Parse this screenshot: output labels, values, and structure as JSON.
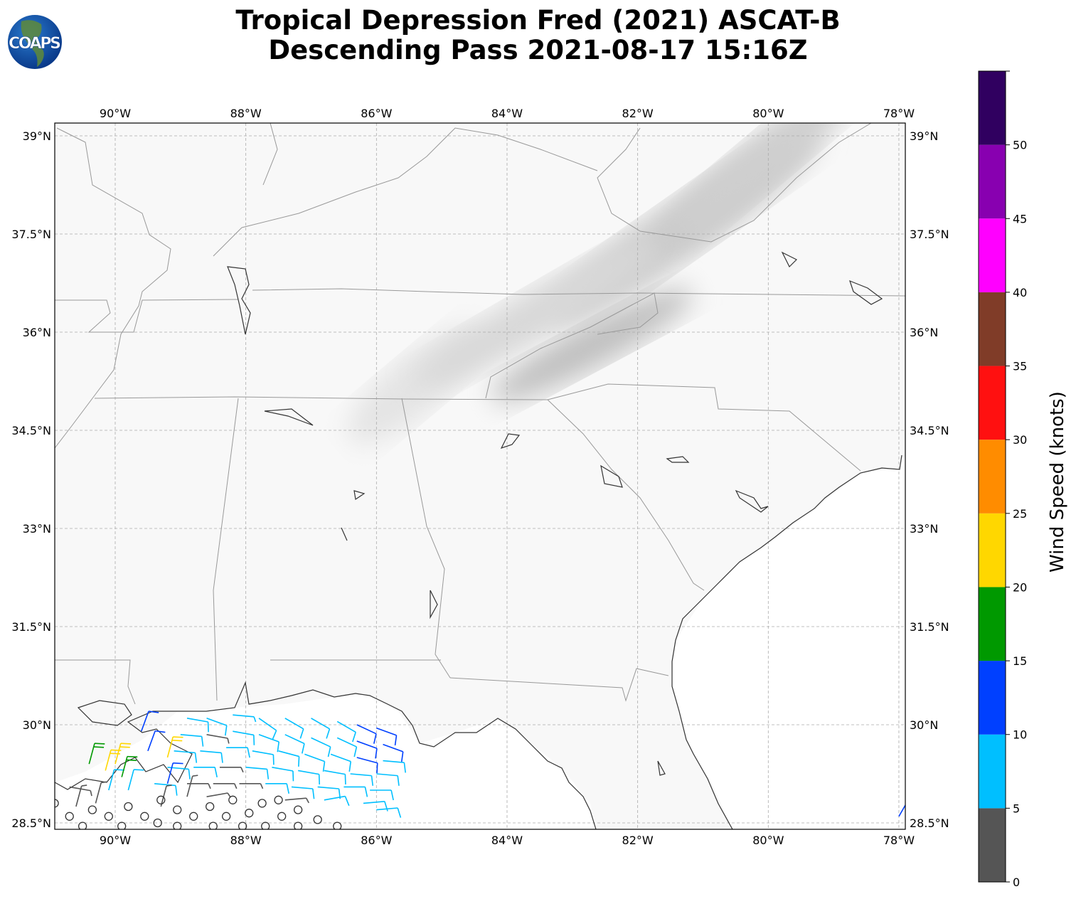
{
  "title": {
    "line1": "Tropical Depression Fred (2021) ASCAT-B",
    "line2": "Descending Pass 2021-08-17 15:16Z"
  },
  "logo": {
    "text": "COAPS"
  },
  "map": {
    "lon_range": [
      -90.93,
      -77.9
    ],
    "lat_range": [
      28.4,
      39.2
    ],
    "lon_ticks": [
      {
        "v": -90,
        "label": "90°W"
      },
      {
        "v": -88,
        "label": "88°W"
      },
      {
        "v": -86,
        "label": "86°W"
      },
      {
        "v": -84,
        "label": "84°W"
      },
      {
        "v": -82,
        "label": "82°W"
      },
      {
        "v": -80,
        "label": "80°W"
      },
      {
        "v": -78,
        "label": "78°W"
      }
    ],
    "lat_ticks": [
      {
        "v": 39,
        "label": "39°N"
      },
      {
        "v": 37.5,
        "label": "37.5°N"
      },
      {
        "v": 36,
        "label": "36°N"
      },
      {
        "v": 34.5,
        "label": "34.5°N"
      },
      {
        "v": 33,
        "label": "33°N"
      },
      {
        "v": 31.5,
        "label": "31.5°N"
      },
      {
        "v": 30,
        "label": "30°N"
      },
      {
        "v": 28.5,
        "label": "28.5°N"
      }
    ],
    "gridlines": true,
    "coastline_color": "#333333",
    "border_color": "#999999"
  },
  "colorbar": {
    "label": "Wind Speed (knots)",
    "range": [
      0,
      55
    ],
    "ticks": [
      0,
      5,
      10,
      15,
      20,
      25,
      30,
      35,
      40,
      45,
      50
    ],
    "colors": [
      "#555555",
      "#00bfff",
      "#0040ff",
      "#009900",
      "#ffd700",
      "#ff8c00",
      "#ff1010",
      "#803c28",
      "#ff00ff",
      "#8800b0",
      "#300060"
    ]
  },
  "wind_barbs": [
    [
      -88.9,
      30.1,
      8,
      100
    ],
    [
      -88.6,
      30.1,
      8,
      110
    ],
    [
      -88.2,
      30.15,
      6,
      95
    ],
    [
      -87.8,
      30.1,
      8,
      125
    ],
    [
      -87.4,
      30.1,
      8,
      120
    ],
    [
      -87.0,
      30.1,
      9,
      120
    ],
    [
      -86.6,
      30.05,
      9,
      120
    ],
    [
      -86.3,
      30.0,
      12,
      115
    ],
    [
      -86.0,
      29.95,
      12,
      110
    ],
    [
      -89.0,
      29.85,
      8,
      95
    ],
    [
      -88.6,
      29.85,
      4,
      100
    ],
    [
      -88.2,
      29.9,
      8,
      100
    ],
    [
      -87.8,
      29.85,
      8,
      110
    ],
    [
      -87.4,
      29.85,
      8,
      115
    ],
    [
      -87.0,
      29.8,
      9,
      115
    ],
    [
      -86.6,
      29.8,
      9,
      115
    ],
    [
      -86.3,
      29.75,
      12,
      110
    ],
    [
      -85.9,
      29.7,
      12,
      110
    ],
    [
      -89.1,
      29.6,
      8,
      95
    ],
    [
      -88.7,
      29.6,
      8,
      95
    ],
    [
      -88.3,
      29.65,
      8,
      90
    ],
    [
      -87.9,
      29.6,
      8,
      100
    ],
    [
      -87.5,
      29.6,
      8,
      105
    ],
    [
      -87.1,
      29.55,
      8,
      110
    ],
    [
      -86.7,
      29.55,
      8,
      110
    ],
    [
      -86.3,
      29.5,
      12,
      105
    ],
    [
      -85.9,
      29.45,
      8,
      95
    ],
    [
      -89.2,
      29.35,
      8,
      95
    ],
    [
      -88.8,
      29.35,
      8,
      90
    ],
    [
      -88.4,
      29.35,
      4,
      90
    ],
    [
      -88.0,
      29.35,
      8,
      95
    ],
    [
      -87.6,
      29.35,
      8,
      100
    ],
    [
      -87.2,
      29.3,
      8,
      100
    ],
    [
      -86.8,
      29.3,
      8,
      100
    ],
    [
      -86.4,
      29.25,
      8,
      95
    ],
    [
      -86.0,
      29.25,
      8,
      95
    ],
    [
      -89.4,
      29.1,
      8,
      95
    ],
    [
      -88.9,
      29.1,
      4,
      90
    ],
    [
      -88.5,
      29.1,
      4,
      90
    ],
    [
      -88.1,
      29.1,
      4,
      90
    ],
    [
      -87.7,
      29.1,
      8,
      90
    ],
    [
      -87.3,
      29.05,
      8,
      95
    ],
    [
      -86.9,
      29.05,
      8,
      95
    ],
    [
      -86.5,
      29.05,
      8,
      90
    ],
    [
      -86.1,
      29.0,
      8,
      90
    ],
    [
      -88.6,
      28.9,
      4,
      80
    ],
    [
      -87.4,
      28.85,
      4,
      85
    ],
    [
      -86.8,
      28.85,
      8,
      80
    ],
    [
      -86.2,
      28.8,
      8,
      85
    ],
    [
      -86.0,
      28.7,
      8,
      85
    ],
    [
      -89.6,
      29.9,
      12,
      20
    ],
    [
      -89.5,
      29.6,
      12,
      20
    ],
    [
      -89.2,
      29.1,
      12,
      15
    ],
    [
      -89.8,
      29.0,
      8,
      15
    ],
    [
      -90.1,
      29.0,
      8,
      15
    ],
    [
      -90.4,
      29.4,
      18,
      15
    ],
    [
      -90.0,
      29.4,
      22,
      15
    ],
    [
      -90.15,
      29.3,
      22,
      15
    ],
    [
      -89.9,
      29.2,
      18,
      15
    ],
    [
      -89.2,
      29.5,
      22,
      15
    ],
    [
      -90.6,
      28.75,
      4,
      15
    ],
    [
      -90.3,
      28.8,
      4,
      15
    ],
    [
      -89.3,
      28.75,
      4,
      15
    ],
    [
      -88.9,
      28.9,
      4,
      15
    ],
    [
      -90.7,
      29.05,
      4,
      100
    ],
    [
      -78.0,
      28.6,
      12,
      30
    ]
  ],
  "calm_points": [
    [
      -90.93,
      28.8
    ],
    [
      -90.7,
      28.6
    ],
    [
      -90.35,
      28.7
    ],
    [
      -90.5,
      28.45
    ],
    [
      -90.1,
      28.6
    ],
    [
      -89.9,
      28.45
    ],
    [
      -89.8,
      28.75
    ],
    [
      -89.55,
      28.6
    ],
    [
      -89.35,
      28.5
    ],
    [
      -89.05,
      28.45
    ],
    [
      -89.3,
      28.85
    ],
    [
      -89.05,
      28.7
    ],
    [
      -88.8,
      28.6
    ],
    [
      -88.5,
      28.45
    ],
    [
      -88.55,
      28.75
    ],
    [
      -88.3,
      28.6
    ],
    [
      -88.05,
      28.45
    ],
    [
      -88.2,
      28.85
    ],
    [
      -87.95,
      28.65
    ],
    [
      -87.7,
      28.45
    ],
    [
      -87.75,
      28.8
    ],
    [
      -87.45,
      28.6
    ],
    [
      -87.2,
      28.45
    ],
    [
      -87.5,
      28.85
    ],
    [
      -87.2,
      28.7
    ],
    [
      -86.9,
      28.55
    ],
    [
      -86.6,
      28.45
    ]
  ]
}
